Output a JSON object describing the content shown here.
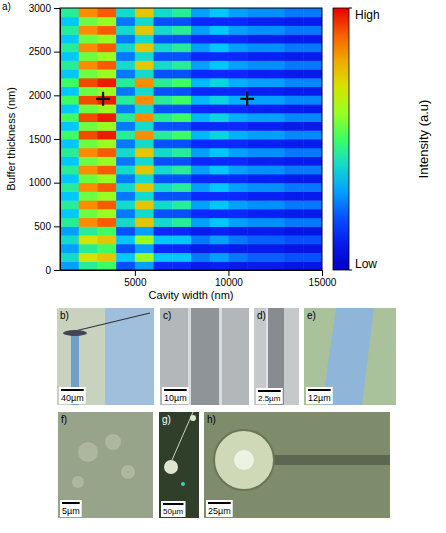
{
  "chart_data": {
    "type": "heatmap",
    "panel": "a)",
    "x_label": "Cavity width (nm)",
    "y_label": "Buffer thickness (nm)",
    "xlim": [
      1000,
      15000
    ],
    "xticks": [
      5000,
      10000,
      15000
    ],
    "ylim": [
      0,
      3000
    ],
    "yticks": [
      0,
      500,
      1000,
      1500,
      2000,
      2500,
      3000
    ],
    "x_bins": [
      1000,
      2000,
      3000,
      4000,
      5000,
      6000,
      7000,
      8000,
      9000,
      10000,
      11000,
      12000,
      13000,
      14000,
      15000
    ],
    "y_bins": [
      0,
      100,
      200,
      300,
      400,
      500,
      600,
      700,
      800,
      900,
      1000,
      1100,
      1200,
      1300,
      1400,
      1500,
      1600,
      1700,
      1800,
      1900,
      2000,
      2100,
      2200,
      2300,
      2400,
      2500,
      2600,
      2700,
      2800,
      2900,
      3000
    ],
    "cells": [
      [
        0.3,
        0.45,
        0.5,
        0.2,
        0.3,
        0.15,
        0.15,
        0.1,
        0.12,
        0.1,
        0.1,
        0.1,
        0.08,
        0.08
      ],
      [
        0.4,
        0.7,
        0.75,
        0.35,
        0.6,
        0.35,
        0.35,
        0.25,
        0.3,
        0.25,
        0.22,
        0.22,
        0.2,
        0.2
      ],
      [
        0.3,
        0.45,
        0.5,
        0.2,
        0.3,
        0.15,
        0.15,
        0.1,
        0.12,
        0.1,
        0.1,
        0.1,
        0.08,
        0.08
      ],
      [
        0.4,
        0.7,
        0.75,
        0.35,
        0.6,
        0.35,
        0.35,
        0.25,
        0.3,
        0.25,
        0.22,
        0.22,
        0.2,
        0.2
      ],
      [
        0.3,
        0.45,
        0.5,
        0.2,
        0.3,
        0.15,
        0.15,
        0.1,
        0.12,
        0.1,
        0.1,
        0.1,
        0.08,
        0.08
      ],
      [
        0.45,
        0.85,
        0.9,
        0.4,
        0.75,
        0.4,
        0.45,
        0.3,
        0.35,
        0.3,
        0.28,
        0.28,
        0.25,
        0.25
      ],
      [
        0.35,
        0.55,
        0.6,
        0.25,
        0.4,
        0.2,
        0.2,
        0.15,
        0.15,
        0.15,
        0.12,
        0.12,
        0.1,
        0.1
      ],
      [
        0.45,
        0.85,
        0.9,
        0.4,
        0.75,
        0.4,
        0.45,
        0.3,
        0.35,
        0.3,
        0.28,
        0.28,
        0.25,
        0.25
      ],
      [
        0.35,
        0.55,
        0.6,
        0.25,
        0.4,
        0.2,
        0.2,
        0.15,
        0.15,
        0.15,
        0.12,
        0.12,
        0.1,
        0.1
      ],
      [
        0.45,
        0.85,
        0.9,
        0.4,
        0.75,
        0.4,
        0.45,
        0.3,
        0.35,
        0.3,
        0.28,
        0.28,
        0.25,
        0.25
      ],
      [
        0.35,
        0.55,
        0.6,
        0.25,
        0.4,
        0.2,
        0.2,
        0.15,
        0.15,
        0.15,
        0.12,
        0.12,
        0.1,
        0.1
      ],
      [
        0.45,
        0.85,
        0.9,
        0.4,
        0.75,
        0.4,
        0.45,
        0.3,
        0.35,
        0.3,
        0.28,
        0.28,
        0.25,
        0.25
      ],
      [
        0.35,
        0.55,
        0.6,
        0.25,
        0.4,
        0.2,
        0.2,
        0.15,
        0.15,
        0.15,
        0.12,
        0.12,
        0.1,
        0.1
      ],
      [
        0.45,
        0.85,
        0.9,
        0.4,
        0.75,
        0.4,
        0.45,
        0.3,
        0.35,
        0.3,
        0.28,
        0.28,
        0.25,
        0.25
      ],
      [
        0.35,
        0.55,
        0.6,
        0.25,
        0.4,
        0.2,
        0.2,
        0.15,
        0.15,
        0.15,
        0.12,
        0.12,
        0.1,
        0.1
      ],
      [
        0.5,
        0.92,
        0.97,
        0.45,
        0.85,
        0.45,
        0.5,
        0.33,
        0.38,
        0.32,
        0.3,
        0.3,
        0.27,
        0.27
      ],
      [
        0.35,
        0.55,
        0.6,
        0.25,
        0.4,
        0.2,
        0.2,
        0.15,
        0.15,
        0.15,
        0.12,
        0.12,
        0.1,
        0.1
      ],
      [
        0.5,
        0.92,
        0.97,
        0.45,
        0.85,
        0.45,
        0.5,
        0.33,
        0.38,
        0.32,
        0.3,
        0.3,
        0.27,
        0.27
      ],
      [
        0.35,
        0.55,
        0.6,
        0.25,
        0.4,
        0.2,
        0.2,
        0.15,
        0.15,
        0.15,
        0.12,
        0.12,
        0.1,
        0.1
      ],
      [
        0.5,
        0.92,
        0.97,
        0.45,
        0.85,
        0.45,
        0.5,
        0.33,
        0.38,
        0.32,
        0.3,
        0.3,
        0.27,
        0.27
      ],
      [
        0.35,
        0.55,
        0.6,
        0.25,
        0.4,
        0.2,
        0.2,
        0.15,
        0.15,
        0.15,
        0.12,
        0.12,
        0.1,
        0.1
      ],
      [
        0.5,
        0.92,
        0.97,
        0.45,
        0.85,
        0.45,
        0.5,
        0.33,
        0.38,
        0.32,
        0.3,
        0.3,
        0.27,
        0.27
      ],
      [
        0.35,
        0.55,
        0.6,
        0.25,
        0.4,
        0.2,
        0.2,
        0.15,
        0.15,
        0.15,
        0.12,
        0.12,
        0.1,
        0.1
      ],
      [
        0.45,
        0.85,
        0.9,
        0.4,
        0.75,
        0.4,
        0.45,
        0.3,
        0.35,
        0.3,
        0.28,
        0.28,
        0.25,
        0.25
      ],
      [
        0.35,
        0.55,
        0.6,
        0.25,
        0.4,
        0.2,
        0.2,
        0.15,
        0.15,
        0.15,
        0.12,
        0.12,
        0.1,
        0.1
      ],
      [
        0.45,
        0.85,
        0.9,
        0.4,
        0.75,
        0.4,
        0.45,
        0.3,
        0.35,
        0.3,
        0.28,
        0.28,
        0.25,
        0.25
      ],
      [
        0.35,
        0.55,
        0.6,
        0.25,
        0.4,
        0.2,
        0.2,
        0.15,
        0.15,
        0.15,
        0.12,
        0.12,
        0.1,
        0.1
      ],
      [
        0.45,
        0.85,
        0.9,
        0.4,
        0.75,
        0.4,
        0.45,
        0.3,
        0.35,
        0.3,
        0.28,
        0.28,
        0.25,
        0.25
      ],
      [
        0.35,
        0.55,
        0.6,
        0.25,
        0.4,
        0.2,
        0.2,
        0.15,
        0.15,
        0.15,
        0.12,
        0.12,
        0.1,
        0.1
      ],
      [
        0.45,
        0.85,
        0.9,
        0.4,
        0.75,
        0.4,
        0.45,
        0.3,
        0.35,
        0.3,
        0.28,
        0.28,
        0.25,
        0.25
      ]
    ],
    "colorbar": {
      "title": "Intensity (a.u)",
      "range": [
        0,
        1
      ],
      "ticks": [
        {
          "value": 1,
          "label": "High"
        },
        {
          "value": 0,
          "label": "Low"
        }
      ]
    },
    "crosses": {
      "x": [
        3300,
        11000
      ],
      "y": [
        1960,
        1960
      ]
    }
  },
  "images": [
    {
      "label": "b)",
      "scale_bar": "40µm"
    },
    {
      "label": "c)",
      "scale_bar": "10µm"
    },
    {
      "label": "d)",
      "scale_bar": "2.5µm"
    },
    {
      "label": "e)",
      "scale_bar": "12µm"
    },
    {
      "label": "f)",
      "scale_bar": "5µm"
    },
    {
      "label": "g)",
      "scale_bar": "50µm"
    },
    {
      "label": "h)",
      "scale_bar": "25µm"
    }
  ]
}
